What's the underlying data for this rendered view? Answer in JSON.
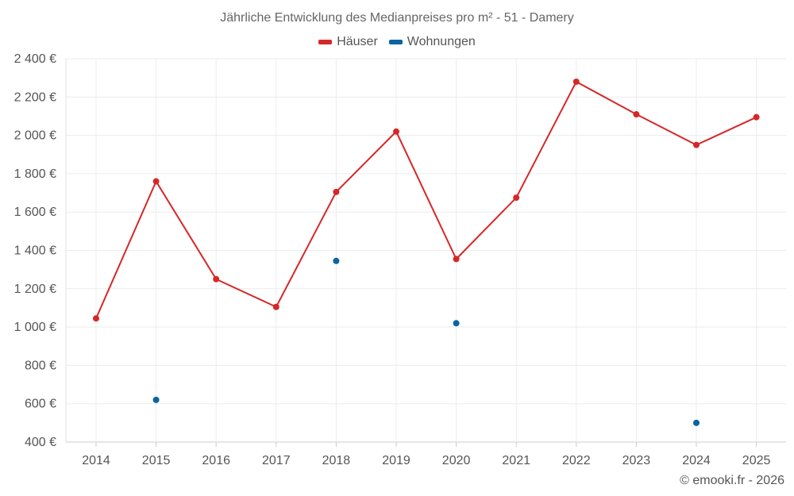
{
  "chart_data": {
    "type": "line",
    "title": "Jährliche Entwicklung des Medianpreises pro m² - 51 - Damery",
    "categories": [
      "2014",
      "2015",
      "2016",
      "2017",
      "2018",
      "2019",
      "2020",
      "2021",
      "2022",
      "2023",
      "2024",
      "2025"
    ],
    "yticks": [
      "400 €",
      "600 €",
      "800 €",
      "1 000 €",
      "1 200 €",
      "1 400 €",
      "1 600 €",
      "1 800 €",
      "2 000 €",
      "2 200 €",
      "2 400 €"
    ],
    "ylim": [
      400,
      2400
    ],
    "ytick_values": [
      400,
      600,
      800,
      1000,
      1200,
      1400,
      1600,
      1800,
      2000,
      2200,
      2400
    ],
    "grid": true,
    "legend_position": "top-center",
    "series": [
      {
        "name": "Häuser",
        "color": "#d62728",
        "line": true,
        "values": [
          1045,
          1760,
          1250,
          1105,
          1705,
          2020,
          1355,
          1675,
          2280,
          2110,
          1950,
          2095
        ]
      },
      {
        "name": "Wohnungen",
        "color": "#0a64a0",
        "line": false,
        "values": [
          null,
          620,
          null,
          null,
          1345,
          null,
          1020,
          null,
          null,
          null,
          500,
          null
        ]
      }
    ]
  },
  "credit": "© emooki.fr - 2026"
}
